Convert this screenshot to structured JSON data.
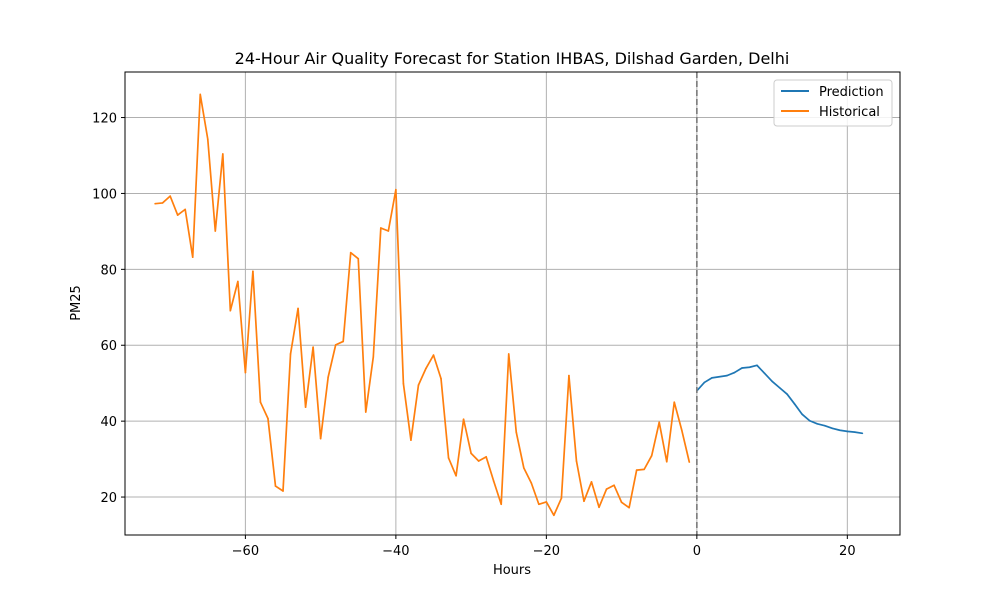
{
  "chart_data": {
    "type": "line",
    "title": "24-Hour Air Quality Forecast for Station IHBAS, Dilshad Garden, Delhi",
    "xlabel": "Hours",
    "ylabel": "PM25",
    "xlim": [
      -76,
      27
    ],
    "ylim": [
      10,
      132
    ],
    "xticks": [
      -60,
      -40,
      -20,
      0,
      20
    ],
    "yticks": [
      20,
      40,
      60,
      80,
      100,
      120
    ],
    "grid": true,
    "legend_position": "top-right",
    "vline": {
      "x": 0,
      "style": "dashed",
      "color": "#808080"
    },
    "series": [
      {
        "name": "Prediction",
        "color": "#1f77b4",
        "x": [
          0,
          1,
          2,
          3,
          4,
          5,
          6,
          7,
          8,
          9,
          10,
          11,
          12,
          13,
          14,
          15,
          16,
          17,
          18,
          19,
          20,
          21,
          22
        ],
        "y": [
          48,
          50.2,
          51.4,
          51.7,
          52,
          52.8,
          54,
          54.2,
          54.7,
          52.6,
          50.5,
          48.8,
          47.1,
          44.5,
          41.8,
          40.1,
          39.3,
          38.8,
          38.1,
          37.6,
          37.3,
          37.1,
          36.8
        ]
      },
      {
        "name": "Historical",
        "color": "#ff7f0e",
        "x": [
          -72,
          -71,
          -70,
          -69,
          -68,
          -67,
          -66,
          -65,
          -64,
          -63,
          -62,
          -61,
          -60,
          -59,
          -58,
          -57,
          -56,
          -55,
          -54,
          -53,
          -52,
          -51,
          -50,
          -49,
          -48,
          -47,
          -46,
          -45,
          -44,
          -43,
          -42,
          -41,
          -40,
          -39,
          -38,
          -37,
          -36,
          -35,
          -34,
          -33,
          -32,
          -31,
          -30,
          -29,
          -28,
          -27,
          -26,
          -25,
          -24,
          -23,
          -22,
          -21,
          -20,
          -19,
          -18,
          -17,
          -16,
          -15,
          -14,
          -13,
          -12,
          -11,
          -10,
          -9,
          -8,
          -7,
          -6,
          -5,
          -4,
          -3,
          -2,
          -1
        ],
        "y": [
          97.3,
          97.5,
          99.3,
          94.3,
          95.8,
          83.2,
          126.1,
          114.3,
          90.1,
          110.4,
          69.1,
          76.8,
          52.8,
          79.5,
          45,
          40.7,
          22.9,
          21.6,
          57.7,
          69.7,
          43.7,
          59.5,
          35.4,
          51.6,
          60.1,
          61,
          84.4,
          82.8,
          42.4,
          56.9,
          90.9,
          90.1,
          101,
          49.9,
          35,
          49.5,
          53.9,
          57.4,
          51.2,
          30.3,
          25.6,
          40.5,
          31.5,
          29.5,
          30.6,
          24.2,
          18.1,
          57.7,
          37.1,
          27.7,
          23.7,
          18.1,
          18.7,
          15.2,
          19.7,
          52,
          29.5,
          18.9,
          24,
          17.3,
          22.1,
          23.1,
          18.6,
          17.2,
          27.1,
          27.3,
          30.9,
          39.7,
          29.3,
          45,
          37.6,
          29.2
        ]
      }
    ]
  }
}
